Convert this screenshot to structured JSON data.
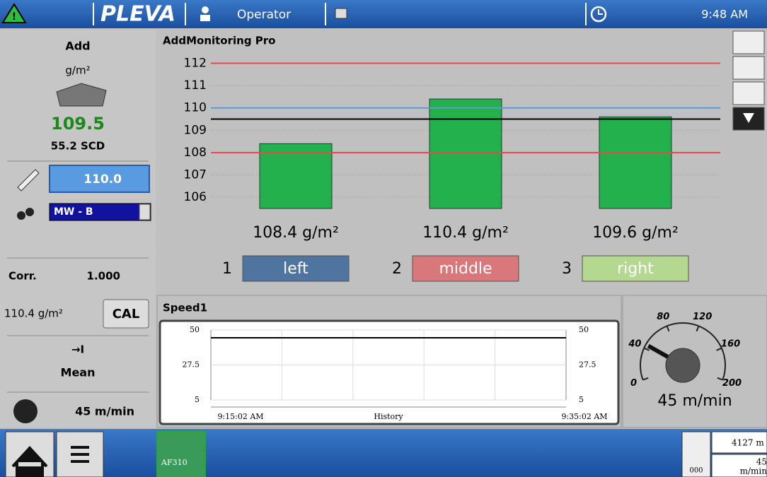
{
  "topbar": {
    "brand": "PLEVA",
    "user": "Operator",
    "time": "9:48 AM"
  },
  "left": {
    "add_label": "Add",
    "unit": "g/m²",
    "value": "109.5",
    "scd": "55.2 SCD",
    "setpoint": "110.0",
    "material": "MW - B",
    "corr_label": "Corr.",
    "corr_value": "1.000",
    "cal_value": "110.4 g/m²",
    "cal_button": "CAL",
    "arrow": "→I",
    "mean": "Mean",
    "speed": "45 m/min"
  },
  "monitor": {
    "title": "AddMonitoring Pro",
    "chart": {
      "type": "bar",
      "zones": [
        "1",
        "2",
        "3"
      ],
      "categories": [
        "left",
        "middle",
        "right"
      ],
      "zone_colors": [
        "#4f74a0",
        "#d9787a",
        "#b5d890"
      ],
      "values": [
        108.4,
        110.4,
        109.6
      ],
      "value_labels": [
        "108.4 g/m²",
        "110.4 g/m²",
        "109.6 g/m²"
      ],
      "color": "#22b14c",
      "ylim": [
        105.5,
        112.3
      ],
      "yticks": [
        106,
        107,
        108,
        109,
        110,
        111,
        112
      ],
      "grid": true,
      "lines": [
        {
          "value": 112,
          "color": "#e84a4a"
        },
        {
          "value": 110,
          "color": "#5b9bd5"
        },
        {
          "value": 109.5,
          "color": "#000000"
        },
        {
          "value": 108,
          "color": "#e84a4a"
        }
      ]
    }
  },
  "speed": {
    "title": "Speed1",
    "chart": {
      "type": "line",
      "x": [
        "9:15:02 AM",
        "9:35:02 AM"
      ],
      "x_center_label": "History",
      "values": [
        45,
        45
      ],
      "color": "#000000",
      "ylim": [
        5,
        50
      ],
      "yticks": [
        5,
        27.5,
        50
      ]
    }
  },
  "gauge": {
    "ticks": [
      0,
      40,
      80,
      120,
      160,
      200
    ],
    "value": 45,
    "label": "45 m/min"
  },
  "bottombar": {
    "device": "AF310",
    "counter": "000",
    "length": "4127 m",
    "speed_value": "45",
    "speed_unit": "m/min"
  }
}
